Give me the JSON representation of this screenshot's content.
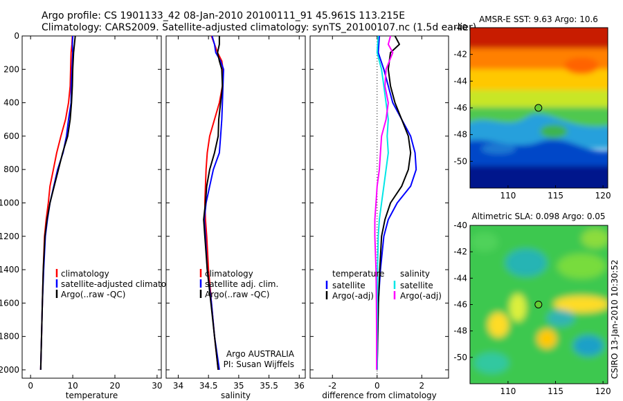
{
  "figure": {
    "title_line1": "Argo profile: CS 1901133_42 08-Jan-2010 20100111_91 45.961S 113.215E",
    "title_line2": "Climatology: CARS2009. Satellite-adjusted climatology: synTS_20100107.nc (1.5d earlier)",
    "credit": "CSIRO 13-Jan-2010 10:30:52"
  },
  "colors": {
    "climatology": "#ff0000",
    "satellite": "#0000ff",
    "argo": "#000000",
    "sat_salinity": "#00e6e6",
    "argo_salinity": "#ff00ff",
    "marker": "#66cc33"
  },
  "chart_data": [
    {
      "id": "temperature",
      "type": "line",
      "xlabel": "temperature",
      "xlim": [
        -2,
        31
      ],
      "ylim": [
        0,
        2050
      ],
      "y_reversed": true,
      "xticks": [
        "0",
        "10",
        "20",
        "30"
      ],
      "yticks": [
        "0",
        "200",
        "400",
        "600",
        "800",
        "1000",
        "1200",
        "1400",
        "1600",
        "1800",
        "2000"
      ],
      "legend": [
        "climatology",
        "satellite-adjusted climatology",
        "Argo(..raw -QC)"
      ],
      "series": [
        {
          "name": "climatology",
          "color": "#ff0000",
          "points": [
            [
              9.9,
              0
            ],
            [
              9.8,
              50
            ],
            [
              9.6,
              100
            ],
            [
              9.5,
              200
            ],
            [
              9.4,
              300
            ],
            [
              9.0,
              400
            ],
            [
              8.3,
              500
            ],
            [
              7.2,
              600
            ],
            [
              6.2,
              700
            ],
            [
              5.4,
              800
            ],
            [
              4.6,
              900
            ],
            [
              4.2,
              1000
            ],
            [
              3.7,
              1100
            ],
            [
              3.3,
              1200
            ],
            [
              3.0,
              1400
            ],
            [
              2.8,
              1600
            ],
            [
              2.6,
              1800
            ],
            [
              2.4,
              2000
            ]
          ]
        },
        {
          "name": "satellite",
          "color": "#0000ff",
          "points": [
            [
              10.0,
              0
            ],
            [
              9.9,
              50
            ],
            [
              10.0,
              100
            ],
            [
              9.8,
              200
            ],
            [
              9.6,
              300
            ],
            [
              9.6,
              400
            ],
            [
              9.0,
              500
            ],
            [
              8.5,
              600
            ],
            [
              7.7,
              700
            ],
            [
              6.4,
              800
            ],
            [
              5.5,
              900
            ],
            [
              4.6,
              1000
            ],
            [
              4.0,
              1100
            ],
            [
              3.5,
              1200
            ],
            [
              3.1,
              1400
            ],
            [
              2.8,
              1600
            ],
            [
              2.6,
              1800
            ],
            [
              2.4,
              2000
            ]
          ]
        },
        {
          "name": "argo",
          "color": "#000000",
          "points": [
            [
              10.6,
              0
            ],
            [
              10.4,
              50
            ],
            [
              10.2,
              100
            ],
            [
              10.0,
              200
            ],
            [
              9.9,
              300
            ],
            [
              9.7,
              400
            ],
            [
              9.4,
              500
            ],
            [
              8.8,
              600
            ],
            [
              7.6,
              700
            ],
            [
              6.6,
              800
            ],
            [
              5.6,
              900
            ],
            [
              4.6,
              1000
            ],
            [
              3.9,
              1100
            ],
            [
              3.4,
              1200
            ],
            [
              3.0,
              1400
            ],
            [
              2.8,
              1600
            ],
            [
              2.6,
              1800
            ],
            [
              2.4,
              2000
            ]
          ]
        }
      ]
    },
    {
      "id": "salinity",
      "type": "line",
      "xlabel": "salinity",
      "xlim": [
        33.8,
        36.1
      ],
      "ylim": [
        0,
        2050
      ],
      "y_reversed": true,
      "xticks": [
        "34",
        "34.5",
        "35",
        "35.5",
        "36"
      ],
      "legend": [
        "climatology",
        "satellite adj. clim.",
        "Argo(..raw -QC)"
      ],
      "annotation": [
        "Argo AUSTRALIA",
        "PI: Susan Wijffels"
      ],
      "series": [
        {
          "name": "climatology",
          "color": "#ff0000",
          "points": [
            [
              34.55,
              0
            ],
            [
              34.6,
              50
            ],
            [
              34.65,
              100
            ],
            [
              34.72,
              150
            ],
            [
              34.74,
              200
            ],
            [
              34.73,
              300
            ],
            [
              34.68,
              400
            ],
            [
              34.6,
              500
            ],
            [
              34.52,
              600
            ],
            [
              34.48,
              700
            ],
            [
              34.46,
              800
            ],
            [
              34.45,
              900
            ],
            [
              34.44,
              1000
            ],
            [
              34.45,
              1100
            ],
            [
              34.47,
              1200
            ],
            [
              34.5,
              1400
            ],
            [
              34.55,
              1600
            ],
            [
              34.6,
              1800
            ],
            [
              34.66,
              2000
            ]
          ]
        },
        {
          "name": "satellite",
          "color": "#0000ff",
          "points": [
            [
              34.56,
              0
            ],
            [
              34.6,
              50
            ],
            [
              34.62,
              100
            ],
            [
              34.7,
              150
            ],
            [
              34.75,
              200
            ],
            [
              34.74,
              300
            ],
            [
              34.73,
              400
            ],
            [
              34.72,
              500
            ],
            [
              34.7,
              600
            ],
            [
              34.68,
              700
            ],
            [
              34.58,
              800
            ],
            [
              34.52,
              900
            ],
            [
              34.46,
              1000
            ],
            [
              34.43,
              1100
            ],
            [
              34.45,
              1200
            ],
            [
              34.48,
              1400
            ],
            [
              34.55,
              1600
            ],
            [
              34.6,
              1800
            ],
            [
              34.68,
              2000
            ]
          ]
        },
        {
          "name": "argo",
          "color": "#000000",
          "points": [
            [
              34.68,
              0
            ],
            [
              34.68,
              50
            ],
            [
              34.65,
              100
            ],
            [
              34.68,
              150
            ],
            [
              34.72,
              200
            ],
            [
              34.73,
              300
            ],
            [
              34.7,
              400
            ],
            [
              34.67,
              500
            ],
            [
              34.66,
              600
            ],
            [
              34.6,
              700
            ],
            [
              34.52,
              800
            ],
            [
              34.47,
              900
            ],
            [
              34.45,
              1000
            ],
            [
              34.42,
              1100
            ],
            [
              34.44,
              1200
            ],
            [
              34.48,
              1400
            ],
            [
              34.54,
              1600
            ],
            [
              34.6,
              1800
            ],
            [
              34.66,
              2000
            ]
          ]
        }
      ]
    },
    {
      "id": "difference",
      "type": "line",
      "xlabel": "difference from climatology",
      "xlim": [
        -3,
        3.2
      ],
      "ylim": [
        0,
        2050
      ],
      "y_reversed": true,
      "xticks": [
        "-2",
        "0",
        "2"
      ],
      "legend_groups": [
        {
          "title": "temperature",
          "items": [
            "satellite",
            "Argo(-adj)"
          ]
        },
        {
          "title": "salinity",
          "items": [
            "satellite",
            "Argo(-adj)"
          ]
        }
      ],
      "series": [
        {
          "name": "temperature satellite",
          "color": "#0000ff",
          "points": [
            [
              0.1,
              0
            ],
            [
              0.05,
              100
            ],
            [
              0.3,
              200
            ],
            [
              0.5,
              300
            ],
            [
              0.7,
              400
            ],
            [
              1.1,
              500
            ],
            [
              1.5,
              600
            ],
            [
              1.7,
              700
            ],
            [
              1.75,
              800
            ],
            [
              1.5,
              900
            ],
            [
              0.9,
              1000
            ],
            [
              0.5,
              1100
            ],
            [
              0.3,
              1200
            ],
            [
              0.15,
              1400
            ],
            [
              0.05,
              1600
            ],
            [
              0.02,
              1800
            ],
            [
              0.0,
              2000
            ]
          ]
        },
        {
          "name": "temperature argo",
          "color": "#000000",
          "points": [
            [
              0.8,
              0
            ],
            [
              1.0,
              50
            ],
            [
              0.6,
              100
            ],
            [
              0.5,
              200
            ],
            [
              0.6,
              300
            ],
            [
              0.8,
              400
            ],
            [
              1.1,
              500
            ],
            [
              1.4,
              600
            ],
            [
              1.5,
              700
            ],
            [
              1.4,
              800
            ],
            [
              1.1,
              900
            ],
            [
              0.6,
              1000
            ],
            [
              0.35,
              1100
            ],
            [
              0.2,
              1200
            ],
            [
              0.12,
              1400
            ],
            [
              0.06,
              1600
            ],
            [
              0.03,
              1800
            ],
            [
              0.0,
              2000
            ]
          ]
        },
        {
          "name": "salinity satellite",
          "color": "#00e6e6",
          "points": [
            [
              0.05,
              0
            ],
            [
              0.0,
              100
            ],
            [
              0.2,
              200
            ],
            [
              0.3,
              300
            ],
            [
              0.4,
              400
            ],
            [
              0.5,
              500
            ],
            [
              0.45,
              600
            ],
            [
              0.5,
              700
            ],
            [
              0.4,
              800
            ],
            [
              0.3,
              900
            ],
            [
              0.2,
              1000
            ],
            [
              0.1,
              1100
            ],
            [
              0.05,
              1200
            ],
            [
              0.02,
              1400
            ],
            [
              0.01,
              1600
            ],
            [
              0.0,
              1800
            ],
            [
              0.0,
              2000
            ]
          ]
        },
        {
          "name": "salinity argo",
          "color": "#ff00ff",
          "points": [
            [
              0.6,
              0
            ],
            [
              0.5,
              50
            ],
            [
              0.7,
              100
            ],
            [
              0.4,
              200
            ],
            [
              0.35,
              300
            ],
            [
              0.5,
              400
            ],
            [
              0.4,
              500
            ],
            [
              0.2,
              600
            ],
            [
              0.15,
              700
            ],
            [
              0.1,
              800
            ],
            [
              0.0,
              900
            ],
            [
              -0.05,
              1000
            ],
            [
              -0.1,
              1100
            ],
            [
              -0.1,
              1200
            ],
            [
              -0.05,
              1400
            ],
            [
              -0.03,
              1600
            ],
            [
              -0.02,
              1800
            ],
            [
              -0.02,
              2000
            ]
          ]
        }
      ]
    },
    {
      "id": "sst-map",
      "type": "heatmap",
      "title": "AMSR-E SST: 9.63 Argo: 10.6",
      "xlim": [
        106,
        120.5
      ],
      "ylim": [
        -52,
        -40
      ],
      "xticks": [
        "110",
        "115",
        "120"
      ],
      "yticks": [
        "-40",
        "-42",
        "-44",
        "-46",
        "-48",
        "-50"
      ],
      "marker": {
        "lon": 113.2,
        "lat": -46.0
      }
    },
    {
      "id": "sla-map",
      "type": "heatmap",
      "title": "Altimetric SLA: 0.098 Argo: 0.05",
      "xlim": [
        106,
        120.5
      ],
      "ylim": [
        -52,
        -40
      ],
      "xticks": [
        "110",
        "115",
        "120"
      ],
      "yticks": [
        "-40",
        "-42",
        "-44",
        "-46",
        "-48",
        "-50"
      ],
      "marker": {
        "lon": 113.2,
        "lat": -46.0
      }
    }
  ]
}
